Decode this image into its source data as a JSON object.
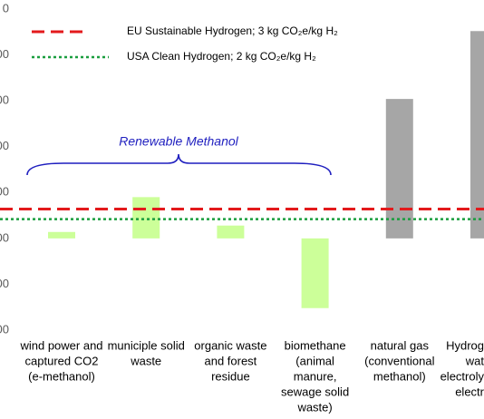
{
  "chart_data": {
    "type": "bar",
    "categories": [
      [
        "wind power and",
        "captured CO2",
        "(e-methanol)"
      ],
      [
        "municiple solid",
        "waste"
      ],
      [
        "organic waste",
        "and forest",
        "residue"
      ],
      [
        "biomethane",
        "(animal",
        "manure,",
        "sewage solid",
        "waste)"
      ],
      [
        "natural gas",
        "(conventional",
        "methanol)"
      ],
      [
        "Hydrog",
        "wat",
        "electroly",
        "electr"
      ]
    ],
    "values": [
      0.7,
      4.5,
      1.4,
      -7.6,
      15.2,
      22.6
    ],
    "colors": [
      "#ccff99",
      "#ccff99",
      "#ccff99",
      "#ccff99",
      "#a6a6a6",
      "#a6a6a6"
    ],
    "ylim": [
      -10.5,
      25.5
    ],
    "yticks": [
      {
        "value": -10,
        "label": "00"
      },
      {
        "value": -5,
        "label": "00"
      },
      {
        "value": 0,
        "label": "00"
      },
      {
        "value": 5,
        "label": "00"
      },
      {
        "value": 10,
        "label": "00"
      },
      {
        "value": 15,
        "label": "00"
      },
      {
        "value": 20,
        "label": "00"
      },
      {
        "value": 25,
        "label": "0"
      }
    ],
    "reference_lines": [
      {
        "name": "EU Sustainable Hydrogen; 3 kg CO₂e/kg H₂",
        "value": 3.2,
        "color": "#e31a1c",
        "style": "dashed"
      },
      {
        "name": "USA Clean Hydrogen; 2 kg CO₂e/kg H₂",
        "value": 2.1,
        "color": "#1a9e3f",
        "style": "dotted"
      }
    ],
    "annotation": "Renewable Methanol"
  }
}
